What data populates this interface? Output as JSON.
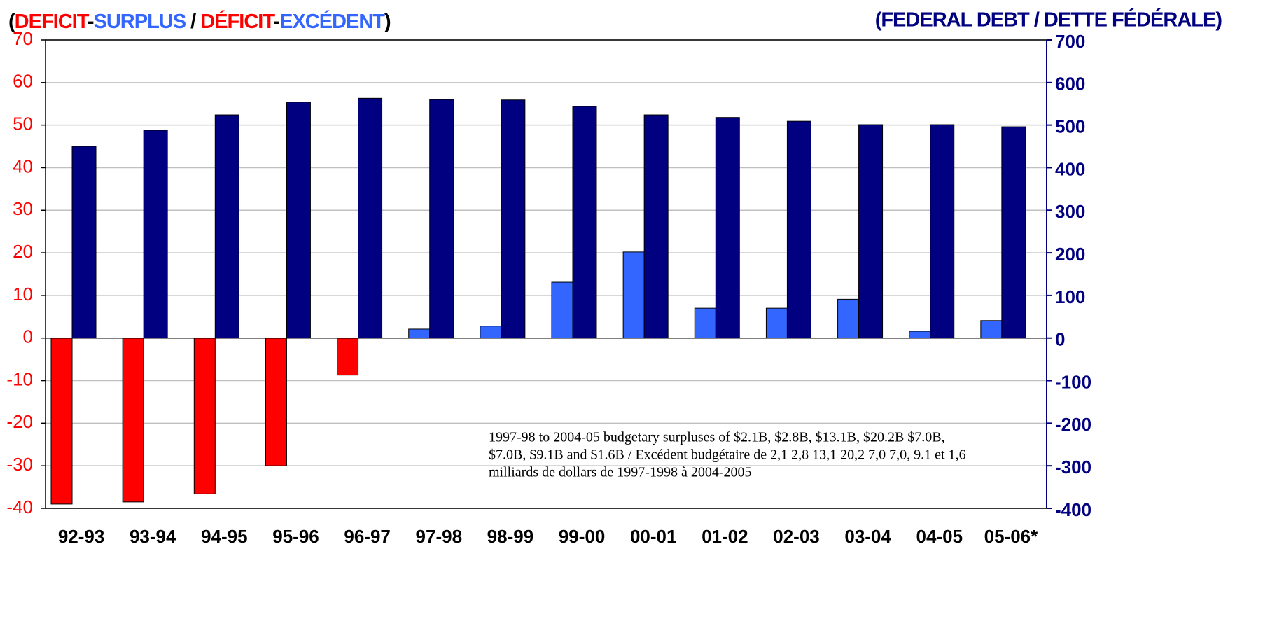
{
  "chart_data": {
    "type": "bar",
    "title_parts": [
      {
        "text": "(",
        "color": "#000000"
      },
      {
        "text": "DEFICIT",
        "color": "#ff0000"
      },
      {
        "text": "-",
        "color": "#000000"
      },
      {
        "text": "SURPLUS",
        "color": "#3366ff"
      },
      {
        "text": " / ",
        "color": "#000000"
      },
      {
        "text": "DÉFICIT",
        "color": "#ff0000"
      },
      {
        "text": "-",
        "color": "#000000"
      },
      {
        "text": "EXCÉDENT",
        "color": "#3366ff"
      },
      {
        "text": ")",
        "color": "#000000"
      }
    ],
    "y2_title": "(FEDERAL DEBT / DETTE FÉDÉRALE)",
    "annotation": [
      "1997-98 to 2004-05 budgetary surpluses of $2.1B, $2.8B, $13.1B, $20.2B $7.0B,",
      "$7.0B, $9.1B and $1.6B / Excédent budgétaire de 2,1 2,8 13,1 20,2 7,0 7,0, 9.1 et 1,6",
      "milliards de dollars de 1997-1998 à 2004-2005"
    ],
    "categories": [
      "92-93",
      "93-94",
      "94-95",
      "95-96",
      "96-97",
      "97-98",
      "98-99",
      "99-00",
      "00-01",
      "01-02",
      "02-03",
      "03-04",
      "04-05",
      "05-06*"
    ],
    "series": [
      {
        "color": "#3366ff",
        "color_negative": "#ff0000",
        "values": [
          -39.0,
          -38.5,
          -36.6,
          -30.0,
          -8.7,
          2.1,
          2.8,
          13.1,
          20.2,
          7.0,
          7.0,
          9.1,
          1.6,
          4.1
        ]
      },
      {
        "color": "#000080",
        "axis": "y2",
        "values": [
          450,
          488,
          524,
          554,
          563,
          560,
          559,
          544,
          524,
          518,
          509,
          501,
          501,
          496
        ]
      }
    ],
    "ylim": [
      -40,
      70
    ],
    "yticks": [
      -40,
      -30,
      -20,
      -10,
      0,
      10,
      20,
      30,
      40,
      50,
      60,
      70
    ],
    "ycolor": "#ff0000",
    "y2lim": [
      -400,
      700
    ],
    "y2ticks": [
      -400,
      -300,
      -200,
      -100,
      0,
      100,
      200,
      300,
      400,
      500,
      600,
      700
    ],
    "y2color": "#000080",
    "grid": true
  }
}
